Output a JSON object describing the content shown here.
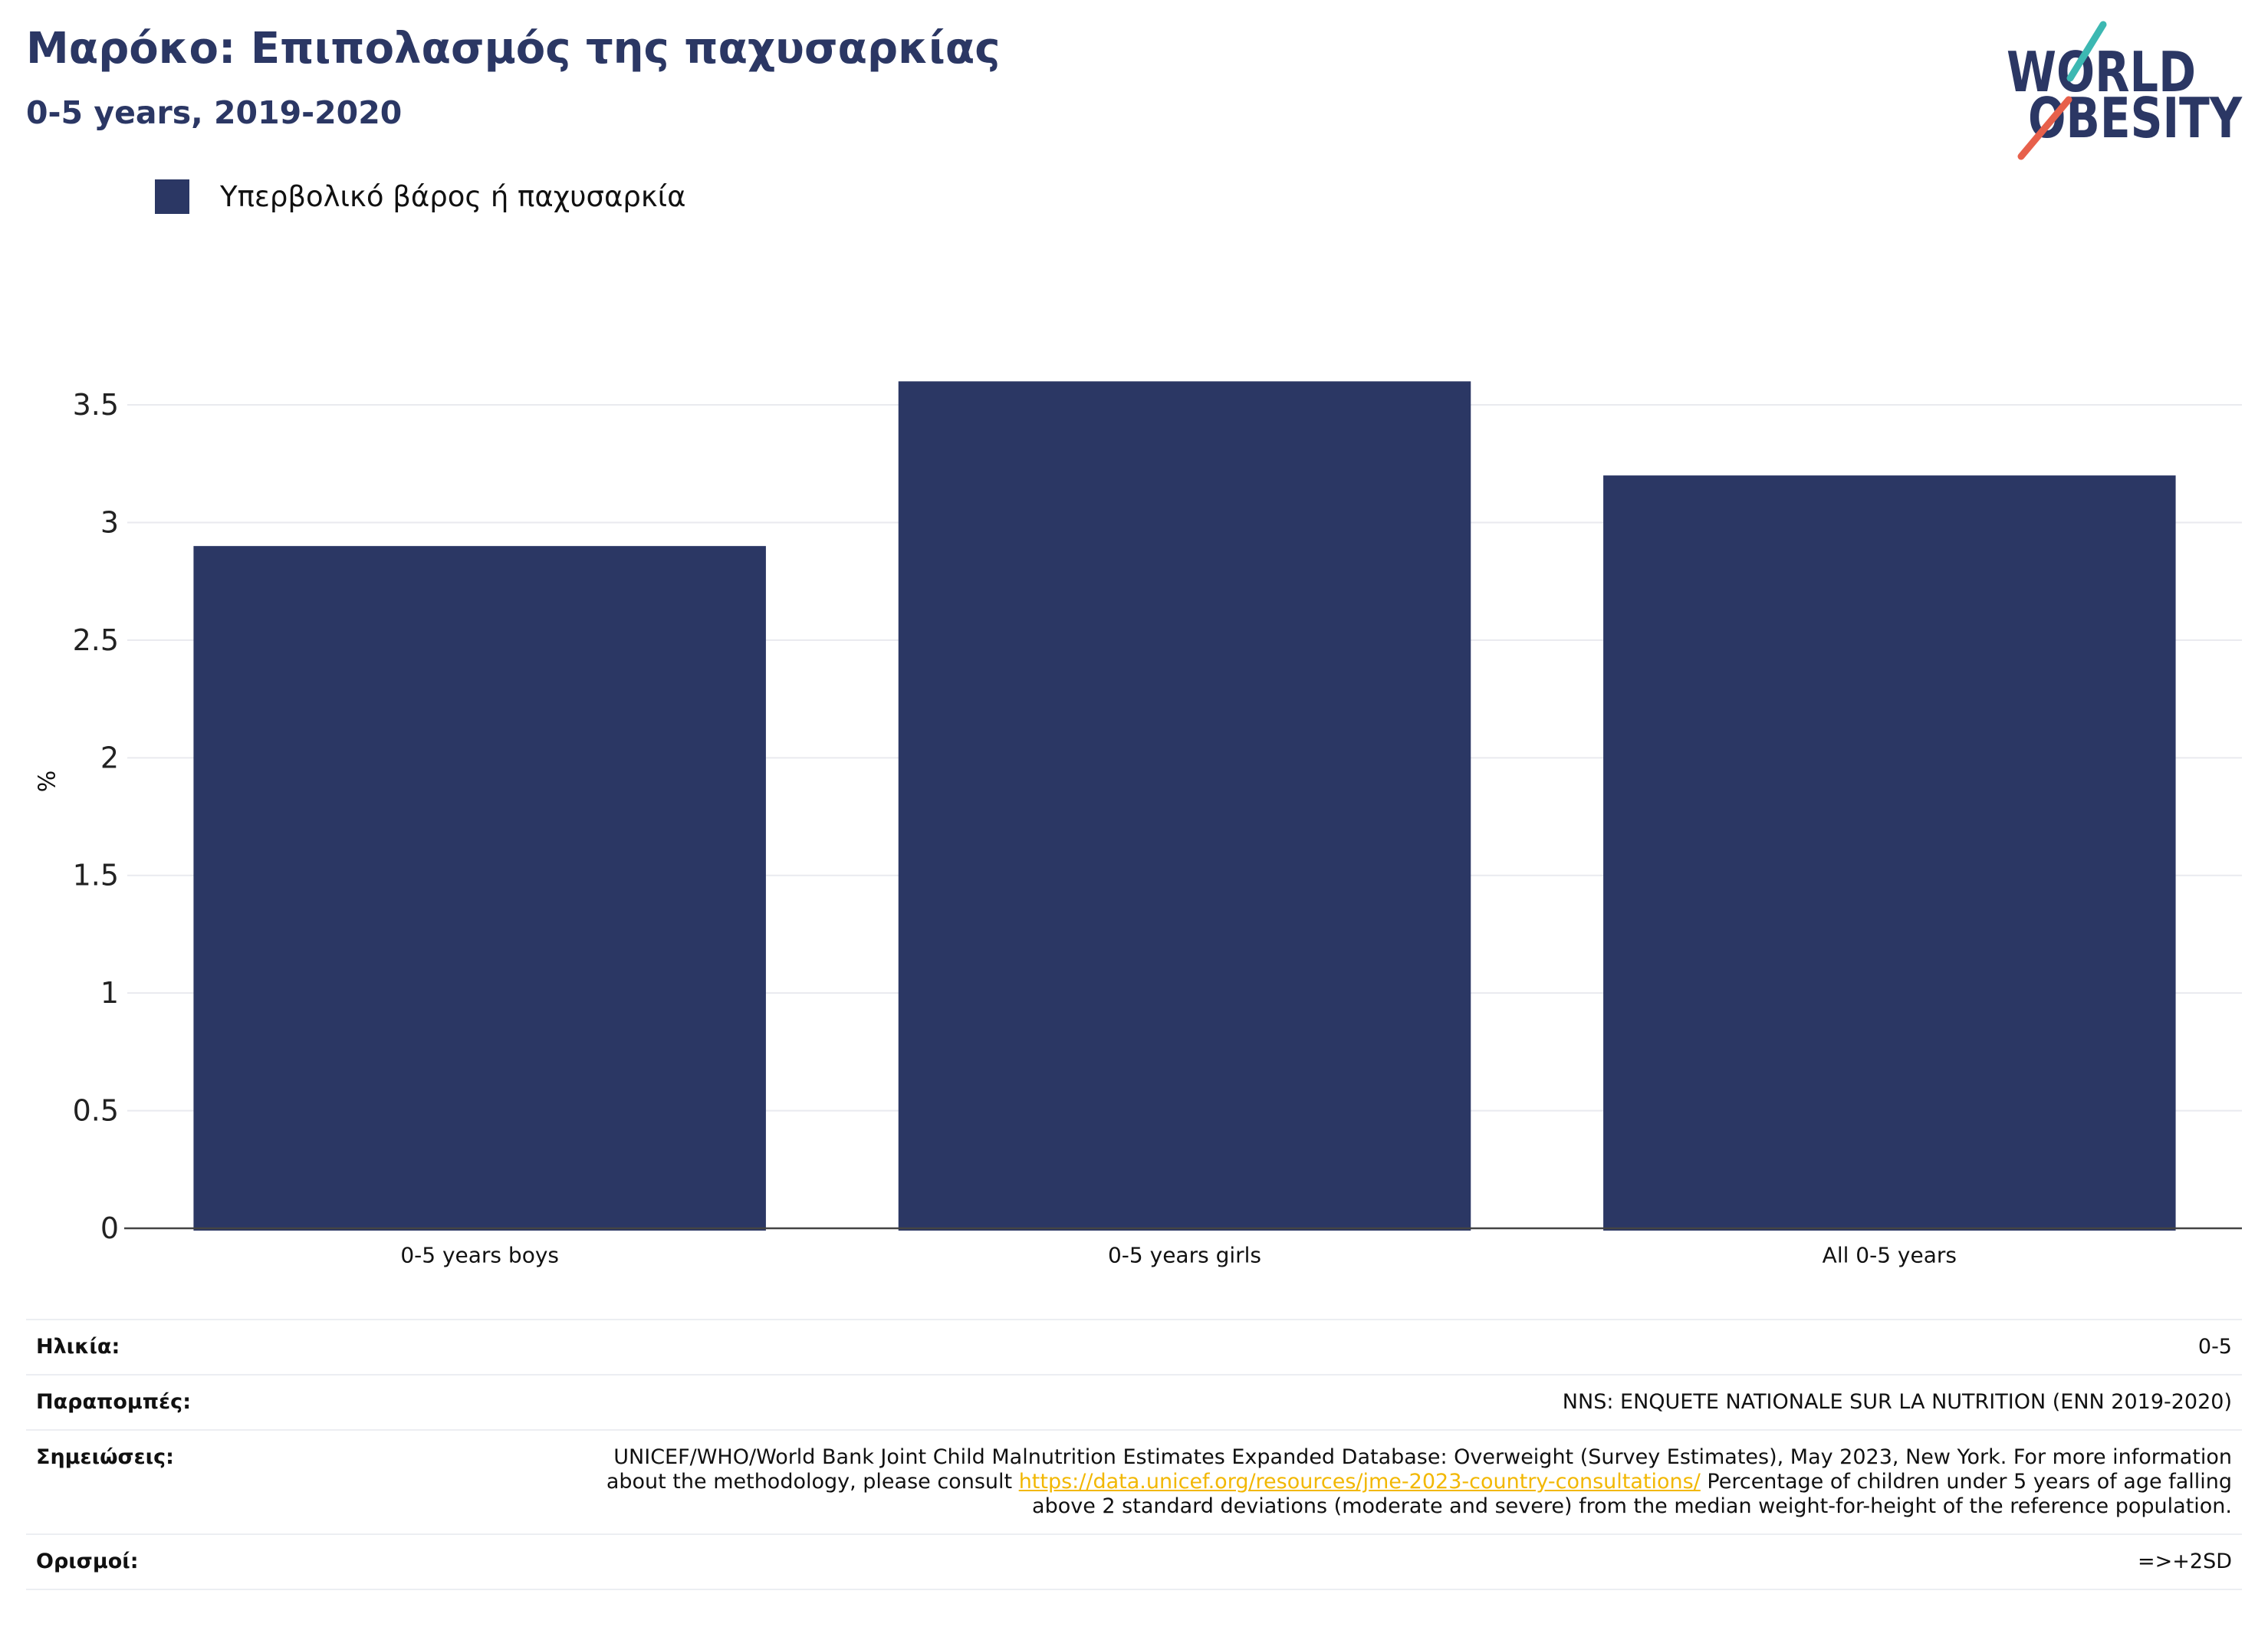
{
  "logo": {
    "line1": "WORLD",
    "line2": "OBESITY",
    "colors": {
      "text": "#2b3764",
      "teal": "#3cb8b2",
      "coral": "#e7604b"
    }
  },
  "chart_data": {
    "type": "bar",
    "title": "Μαρόκο: Επιπολασμός της παχυσαρκίας",
    "subtitle": "0-5 years, 2019-2020",
    "categories": [
      "0-5 years boys",
      "0-5 years girls",
      "All 0-5 years"
    ],
    "series": [
      {
        "name": "Υπερβολικό βάρος ή παχυσαρκία",
        "values": [
          2.9,
          3.6,
          3.2
        ],
        "color": "#2b3764"
      }
    ],
    "xlabel": "",
    "ylabel": "%",
    "yticks": [
      0,
      0.5,
      1,
      1.5,
      2,
      2.5,
      3,
      3.5
    ],
    "ylim": [
      0,
      3.8
    ],
    "grid": true,
    "legend_position": "top-left"
  },
  "info": {
    "age": {
      "label": "Ηλικία:",
      "value": "0-5"
    },
    "references": {
      "label": "Παραπομπές:",
      "value": "NNS: ENQUETE NATIONALE SUR LA NUTRITION (ENN 2019-2020)"
    },
    "notes": {
      "label": "Σημειώσεις:",
      "text_before": "UNICEF/WHO/World Bank Joint Child Malnutrition Estimates Expanded Database: Overweight (Survey Estimates), May 2023, New York. For more information about the methodology, please consult",
      "link": "https://data.unicef.org/resources/jme-2023-country-consultations/",
      "text_after": "Percentage of children under 5 years of age falling above 2 standard deviations (moderate and severe) from the median weight-for-height of the reference population.",
      "link_color": "#f2b701"
    },
    "definitions": {
      "label": "Ορισμοί:",
      "value": "=>+2SD"
    }
  }
}
